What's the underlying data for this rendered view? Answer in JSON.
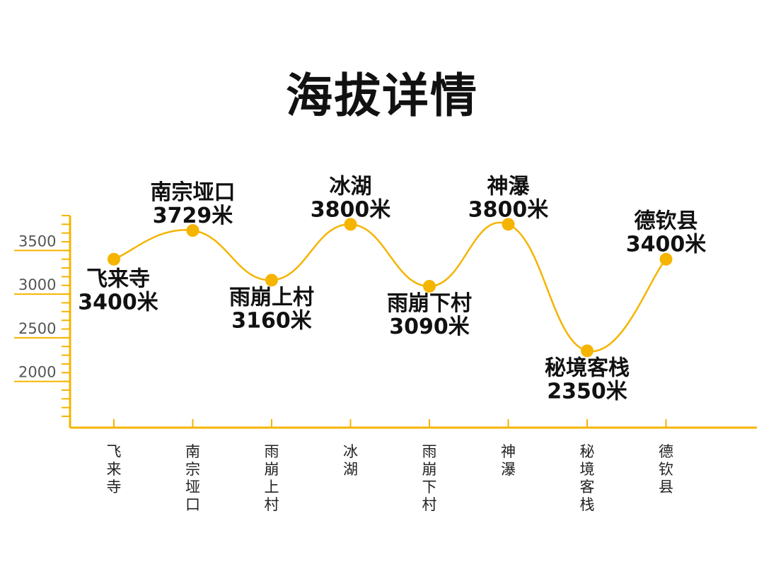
{
  "title": "海拔详情",
  "colors": {
    "accent": "#F5B400",
    "axis": "#F5B400",
    "text": "#111111",
    "tick_text": "#555555"
  },
  "chart_data": {
    "type": "line",
    "title": "海拔详情",
    "xlabel": "",
    "ylabel": "",
    "ylim": [
      1470,
      3900
    ],
    "yticks": [
      2000,
      2500,
      3000,
      3500
    ],
    "grid": false,
    "smooth": true,
    "categories": [
      "飞来寺",
      "南宗垭口",
      "雨崩上村",
      "冰湖",
      "雨崩下村",
      "神瀑",
      "秘境客栈",
      "德钦县"
    ],
    "series": [
      {
        "values": [
          3400,
          3729,
          3160,
          3800,
          3090,
          3800,
          2350,
          3400
        ],
        "point_labels": [
          {
            "name": "飞来寺",
            "value": "3400米",
            "placement": "below-right"
          },
          {
            "name": "南宗垭口",
            "value": "3729米",
            "placement": "above"
          },
          {
            "name": "雨崩上村",
            "value": "3160米",
            "placement": "below"
          },
          {
            "name": "冰湖",
            "value": "3800米",
            "placement": "above"
          },
          {
            "name": "雨崩下村",
            "value": "3090米",
            "placement": "below"
          },
          {
            "name": "神瀑",
            "value": "3800米",
            "placement": "above"
          },
          {
            "name": "秘境客栈",
            "value": "2350米",
            "placement": "below"
          },
          {
            "name": "德钦县",
            "value": "3400米",
            "placement": "above"
          }
        ]
      }
    ]
  }
}
